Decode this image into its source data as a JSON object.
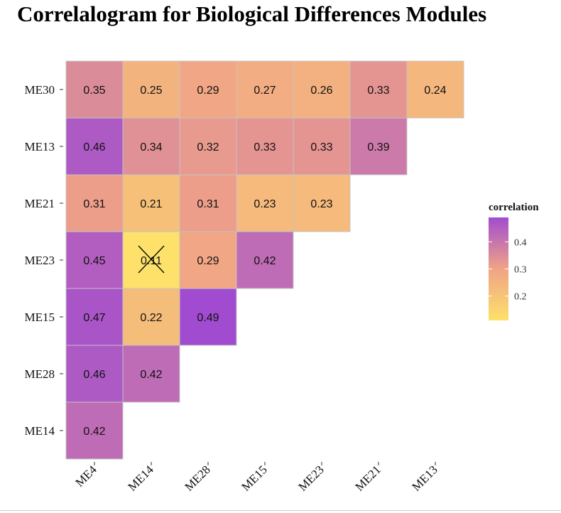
{
  "chart_data": {
    "type": "heatmap",
    "title": "Correlalogram for Biological Differences Modules",
    "x_categories": [
      "ME4",
      "ME14",
      "ME28",
      "ME15",
      "ME23",
      "ME21",
      "ME13"
    ],
    "y_categories": [
      "ME30",
      "ME13",
      "ME21",
      "ME23",
      "ME15",
      "ME28",
      "ME14"
    ],
    "values": [
      [
        0.35,
        0.25,
        0.29,
        0.27,
        0.26,
        0.33,
        0.24
      ],
      [
        0.46,
        0.34,
        0.32,
        0.33,
        0.33,
        0.39,
        null
      ],
      [
        0.31,
        0.21,
        0.31,
        0.23,
        0.23,
        null,
        null
      ],
      [
        0.45,
        0.11,
        0.29,
        0.42,
        null,
        null,
        null
      ],
      [
        0.47,
        0.22,
        0.49,
        null,
        null,
        null,
        null
      ],
      [
        0.46,
        0.42,
        null,
        null,
        null,
        null,
        null
      ],
      [
        0.42,
        null,
        null,
        null,
        null,
        null,
        null
      ]
    ],
    "crossed_cells": [
      [
        3,
        1
      ]
    ],
    "color_range": [
      0.11,
      0.49
    ],
    "colors": {
      "low": "#fde16a",
      "mid": "#f0a386",
      "high": "#a14cd0"
    },
    "legend": {
      "title": "correlation",
      "ticks": [
        0.2,
        0.3,
        0.4
      ],
      "tick_labels": [
        "0.2",
        "0.3",
        "0.4"
      ],
      "placement": "right"
    }
  }
}
